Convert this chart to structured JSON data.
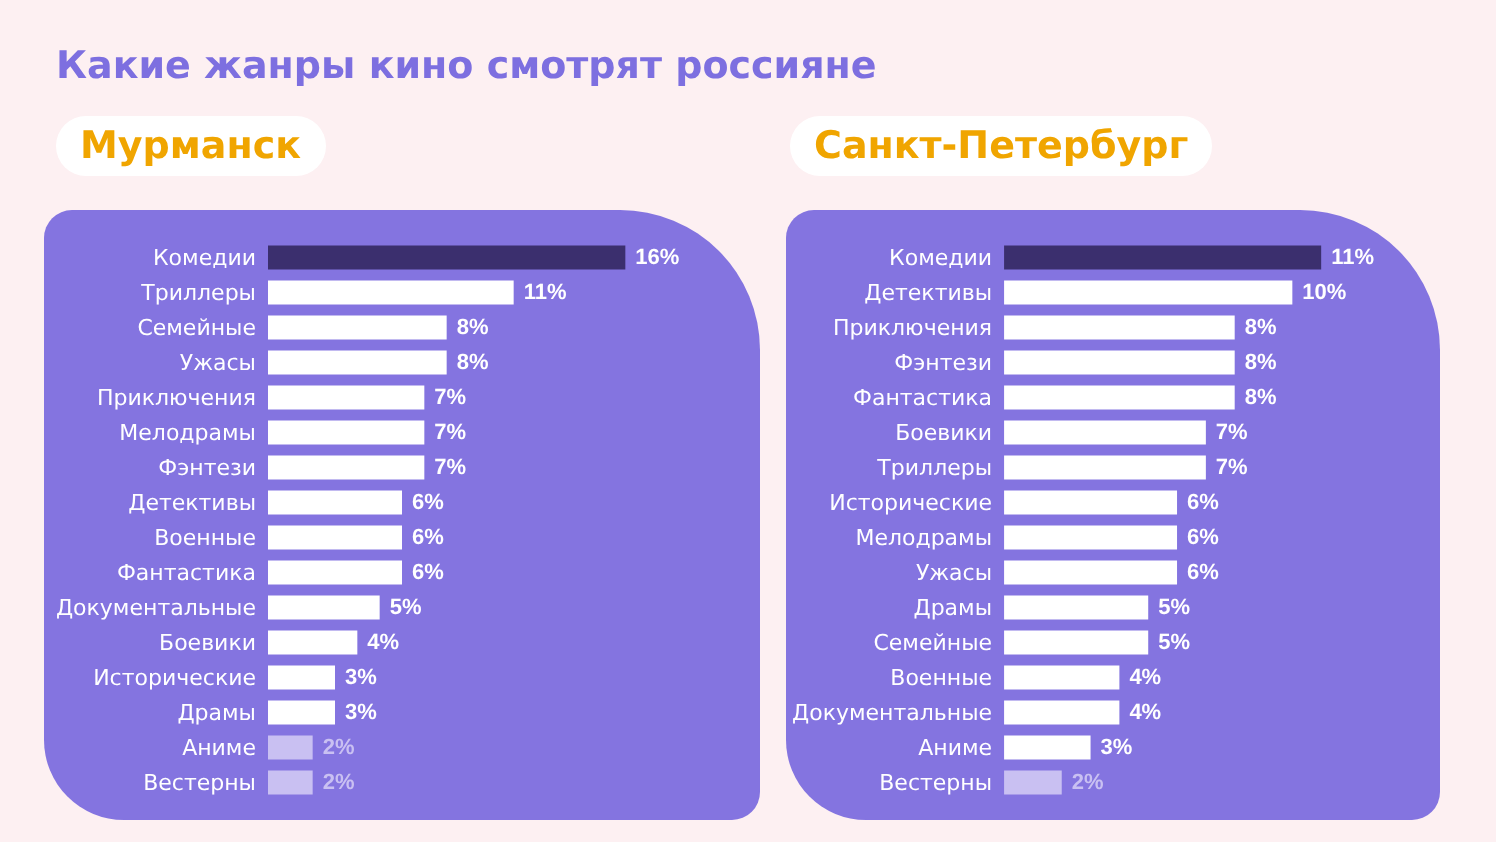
{
  "chart_data": [
    {
      "type": "bar",
      "orientation": "horizontal",
      "title": "Какие жанры кино смотрят россияне",
      "subtitle": "Мурманск",
      "categories": [
        "Комедии",
        "Триллеры",
        "Семейные",
        "Ужасы",
        "Приключения",
        "Мелодрамы",
        "Фэнтези",
        "Детективы",
        "Военные",
        "Фантастика",
        "Документальные",
        "Боевики",
        "Исторические",
        "Драмы",
        "Аниме",
        "Вестерны"
      ],
      "values": [
        16,
        11,
        8,
        8,
        7,
        7,
        7,
        6,
        6,
        6,
        5,
        4,
        3,
        3,
        2,
        2
      ],
      "value_labels": [
        "16%",
        "11%",
        "8%",
        "8%",
        "7%",
        "7%",
        "7%",
        "6%",
        "6%",
        "6%",
        "5%",
        "4%",
        "3%",
        "3%",
        "2%",
        "2%"
      ],
      "colors": [
        "#3b2f6e",
        "#ffffff",
        "#ffffff",
        "#ffffff",
        "#ffffff",
        "#ffffff",
        "#ffffff",
        "#ffffff",
        "#ffffff",
        "#ffffff",
        "#ffffff",
        "#ffffff",
        "#ffffff",
        "#ffffff",
        "#c9c0f2",
        "#c9c0f2"
      ]
    },
    {
      "type": "bar",
      "orientation": "horizontal",
      "subtitle": "Санкт-Петербург",
      "categories": [
        "Комедии",
        "Детективы",
        "Приключения",
        "Фэнтези",
        "Фантастика",
        "Боевики",
        "Триллеры",
        "Исторические",
        "Мелодрамы",
        "Ужасы",
        "Драмы",
        "Семейные",
        "Военные",
        "Документальные",
        "Аниме",
        "Вестерны"
      ],
      "values": [
        11,
        10,
        8,
        8,
        8,
        7,
        7,
        6,
        6,
        6,
        5,
        5,
        4,
        4,
        3,
        2
      ],
      "value_labels": [
        "11%",
        "10%",
        "8%",
        "8%",
        "8%",
        "7%",
        "7%",
        "6%",
        "6%",
        "6%",
        "5%",
        "5%",
        "4%",
        "4%",
        "3%",
        "2%"
      ],
      "colors": [
        "#3b2f6e",
        "#ffffff",
        "#ffffff",
        "#ffffff",
        "#ffffff",
        "#ffffff",
        "#ffffff",
        "#ffffff",
        "#ffffff",
        "#ffffff",
        "#ffffff",
        "#ffffff",
        "#ffffff",
        "#ffffff",
        "#ffffff",
        "#c9c0f2"
      ]
    }
  ]
}
